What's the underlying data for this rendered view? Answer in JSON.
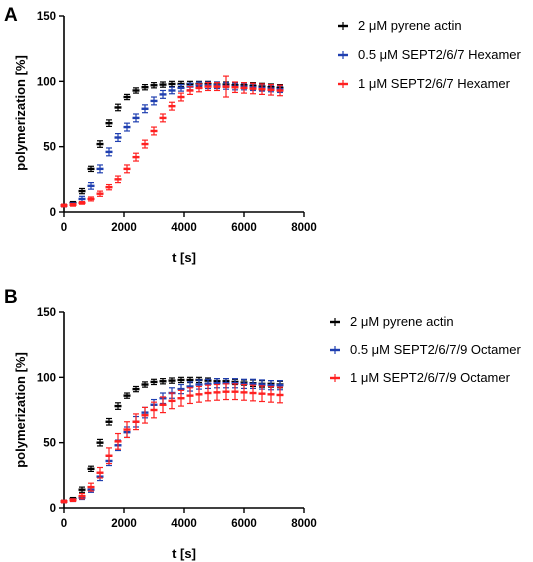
{
  "chart_data": [
    {
      "panel": "A",
      "type": "scatter",
      "xlabel": "t [s]",
      "ylabel": "polymerization [%]",
      "xlim": [
        0,
        8000
      ],
      "ylim": [
        0,
        150
      ],
      "xticks": [
        0,
        2000,
        4000,
        6000,
        8000
      ],
      "yticks": [
        0,
        50,
        100,
        150
      ],
      "error_bars": true,
      "legend_position": "right",
      "series": [
        {
          "name": "2 μM pyrene actin",
          "color": "#000000",
          "x": [
            0,
            300,
            600,
            900,
            1200,
            1500,
            1800,
            2100,
            2400,
            2700,
            3000,
            3300,
            3600,
            3900,
            4200,
            4500,
            4800,
            5100,
            5400,
            5700,
            6000,
            6300,
            6600,
            6900,
            7200
          ],
          "y": [
            5,
            7,
            16,
            33,
            52,
            68,
            80,
            88,
            93,
            95.5,
            97,
            97.5,
            98,
            98,
            98,
            98,
            98,
            97.5,
            97.5,
            97,
            97,
            96.5,
            96,
            95.5,
            95
          ],
          "err": [
            1,
            1,
            2,
            2,
            2.5,
            2.5,
            2.5,
            2,
            2,
            2,
            2,
            2,
            2,
            2,
            2,
            2,
            2,
            2,
            2,
            2,
            2,
            2.5,
            2.5,
            2.5,
            2.5
          ]
        },
        {
          "name": "0.5 μM SEPT2/6/7 Hexamer",
          "color": "#1f3fb0",
          "x": [
            0,
            300,
            600,
            900,
            1200,
            1500,
            1800,
            2100,
            2400,
            2700,
            3000,
            3300,
            3600,
            3900,
            4200,
            4500,
            4800,
            5100,
            5400,
            5700,
            6000,
            6300,
            6600,
            6900,
            7200
          ],
          "y": [
            5,
            6,
            10,
            20,
            33,
            46,
            57,
            65,
            72,
            79,
            85,
            90,
            93,
            95,
            96,
            97,
            97,
            97,
            96.5,
            96,
            96,
            95.5,
            95,
            94.5,
            94
          ],
          "err": [
            1,
            1,
            2,
            2.5,
            3,
            3,
            3,
            3,
            3,
            3,
            3,
            3,
            2.5,
            2.5,
            2.5,
            2.5,
            2.5,
            2.5,
            2.5,
            2.5,
            2.5,
            2.5,
            2.5,
            2.5,
            2.5
          ]
        },
        {
          "name": "1 μM SEPT2/6/7 Hexamer",
          "color": "#ff2020",
          "x": [
            0,
            300,
            600,
            900,
            1200,
            1500,
            1800,
            2100,
            2400,
            2700,
            3000,
            3300,
            3600,
            3900,
            4200,
            4500,
            4800,
            5100,
            5400,
            5700,
            6000,
            6300,
            6600,
            6900,
            7200
          ],
          "y": [
            5,
            5.5,
            7,
            10,
            14,
            19,
            25,
            33,
            42,
            52,
            62,
            72,
            81,
            88,
            93,
            95,
            96,
            96,
            96,
            95.5,
            95,
            94.5,
            94,
            93.5,
            93
          ],
          "err": [
            1,
            1,
            1,
            1.5,
            2,
            2,
            2.5,
            3,
            3,
            3,
            3,
            3,
            3,
            3,
            3,
            3,
            3,
            3,
            8,
            4,
            4,
            4,
            4,
            4,
            4
          ]
        }
      ]
    },
    {
      "panel": "B",
      "type": "scatter",
      "xlabel": "t [s]",
      "ylabel": "polymerization [%]",
      "xlim": [
        0,
        8000
      ],
      "ylim": [
        0,
        150
      ],
      "xticks": [
        0,
        2000,
        4000,
        6000,
        8000
      ],
      "yticks": [
        0,
        50,
        100,
        150
      ],
      "error_bars": true,
      "legend_position": "right",
      "series": [
        {
          "name": "2 μM pyrene actin",
          "color": "#000000",
          "x": [
            0,
            300,
            600,
            900,
            1200,
            1500,
            1800,
            2100,
            2400,
            2700,
            3000,
            3300,
            3600,
            3900,
            4200,
            4500,
            4800,
            5100,
            5400,
            5700,
            6000,
            6300,
            6600,
            6900,
            7200
          ],
          "y": [
            5,
            7,
            14,
            30,
            50,
            66,
            78,
            86,
            91,
            94.5,
            96.5,
            97,
            97.5,
            98,
            98,
            98,
            97.5,
            97,
            97,
            96.5,
            96,
            95.5,
            95,
            95,
            94.5
          ],
          "err": [
            1,
            1,
            2,
            2,
            2.5,
            2.5,
            2.5,
            2,
            2,
            2,
            2,
            2,
            2,
            2,
            2,
            2,
            2,
            2,
            2,
            2,
            2,
            2.5,
            2.5,
            2.5,
            2.5
          ]
        },
        {
          "name": "0.5 μM SEPT2/6/7/9 Octamer",
          "color": "#1f3fb0",
          "x": [
            0,
            300,
            600,
            900,
            1200,
            1500,
            1800,
            2100,
            2400,
            2700,
            3000,
            3300,
            3600,
            3900,
            4200,
            4500,
            4800,
            5100,
            5400,
            5700,
            6000,
            6300,
            6600,
            6900,
            7200
          ],
          "y": [
            5,
            6,
            8,
            14,
            24,
            36,
            48,
            58,
            66,
            73,
            79,
            84,
            88,
            91,
            93,
            94.5,
            95,
            95.5,
            95.5,
            95.5,
            95,
            95,
            94.5,
            94,
            94
          ],
          "err": [
            1,
            1,
            1.5,
            2,
            3,
            3.5,
            4,
            4,
            4,
            4,
            4,
            4,
            4,
            3.5,
            3.5,
            3.5,
            3.5,
            3.5,
            3.5,
            3.5,
            3.5,
            3.5,
            3.5,
            3.5,
            3.5
          ]
        },
        {
          "name": "1 μM SEPT2/6/7/9 Octamer",
          "color": "#ff2020",
          "x": [
            0,
            300,
            600,
            900,
            1200,
            1500,
            1800,
            2100,
            2400,
            2700,
            3000,
            3300,
            3600,
            3900,
            4200,
            4500,
            4800,
            5100,
            5400,
            5700,
            6000,
            6300,
            6600,
            6900,
            7200
          ],
          "y": [
            5,
            6,
            9,
            16,
            27,
            40,
            51,
            60,
            66,
            71,
            75,
            79,
            82,
            84,
            86,
            87,
            88,
            88.5,
            89,
            89,
            88.5,
            88,
            87.5,
            87,
            86.5
          ],
          "err": [
            1,
            1,
            2,
            3,
            4,
            6,
            6,
            6,
            6,
            6,
            6,
            6,
            6,
            6,
            6,
            6,
            6,
            6,
            6,
            6,
            6,
            6,
            6,
            6,
            6
          ]
        }
      ]
    }
  ]
}
